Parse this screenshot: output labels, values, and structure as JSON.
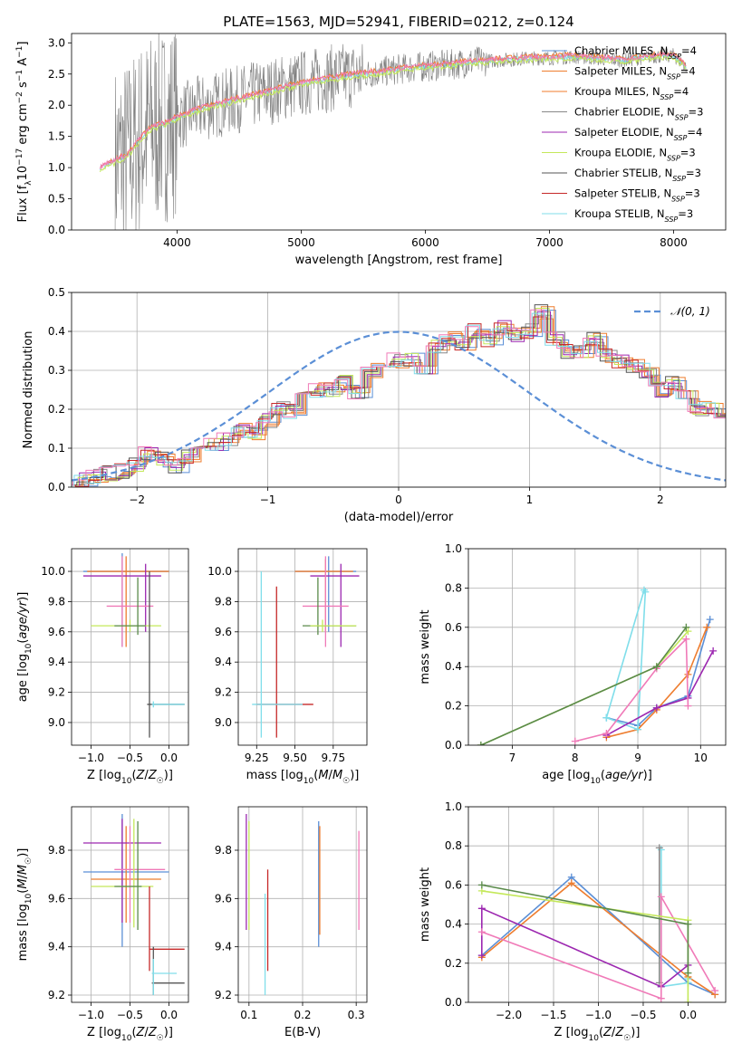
{
  "title": "PLATE=1563, MJD=52941, FIBERID=0212, z=0.124",
  "colors": {
    "chabrier_miles": "#5b8fd6",
    "salpeter_miles": "#ee7d2f",
    "kroupa_miles": "#f07c2e",
    "chabrier_elodie": "#888888",
    "salpeter_elodie": "#9c27b0",
    "kroupa_elodie": "#c4e85a",
    "chabrier_stelib": "#555555",
    "salpeter_stelib": "#c62828",
    "kroupa_stelib": "#80deea",
    "pink": "#f07ab8",
    "green": "#5a8a4a",
    "normal_curve": "#5b8fd6"
  },
  "chart_data": [
    {
      "id": "spectrum",
      "type": "line",
      "xlabel": "wavelength [Angstrom, rest frame]",
      "ylabel": "Flux [f_λ 10^-17 erg cm^-2 s^-1 A^-1]",
      "xlim": [
        3150,
        8420
      ],
      "ylim": [
        0,
        3.15
      ],
      "xticks": [
        "4000",
        "5000",
        "6000",
        "7000",
        "8000"
      ],
      "yticks": [
        "0.0",
        "0.5",
        "1.0",
        "1.5",
        "2.0",
        "2.5",
        "3.0"
      ],
      "legend": {
        "position": "top-right",
        "entries": [
          "Chabrier MILES, N_SSP=4",
          "Salpeter MILES, N_SSP=4",
          "Kroupa MILES, N_SSP=4",
          "Chabrier ELODIE, N_SSP=3",
          "Salpeter ELODIE, N_SSP=4",
          "Kroupa ELODIE, N_SSP=3",
          "Chabrier STELIB, N_SSP=3",
          "Salpeter STELIB, N_SSP=3",
          "Kroupa STELIB, N_SSP=3"
        ]
      },
      "continuum": {
        "x": [
          3380,
          3500,
          3600,
          3700,
          3800,
          3900,
          4000,
          4200,
          4400,
          4600,
          4800,
          5000,
          5200,
          5400,
          5600,
          5800,
          6000,
          6200,
          6400,
          6600,
          6800,
          7000,
          7200,
          7400,
          7600,
          7800,
          8000,
          8100
        ],
        "y": [
          1.0,
          1.1,
          1.2,
          1.45,
          1.65,
          1.7,
          1.8,
          1.95,
          2.05,
          2.15,
          2.25,
          2.35,
          2.42,
          2.48,
          2.52,
          2.58,
          2.62,
          2.65,
          2.7,
          2.72,
          2.75,
          2.76,
          2.78,
          2.75,
          2.72,
          2.78,
          2.8,
          2.62
        ]
      }
    },
    {
      "id": "residuals",
      "type": "bar",
      "xlabel": "(data-model)/error",
      "ylabel": "Normed distribution",
      "xlim": [
        -2.5,
        2.5
      ],
      "ylim": [
        0,
        0.5
      ],
      "xticks": [
        "−2",
        "−1",
        "0",
        "1",
        "2"
      ],
      "yticks": [
        "0.0",
        "0.1",
        "0.2",
        "0.3",
        "0.4",
        "0.5"
      ],
      "legend": {
        "position": "top-right",
        "entries": [
          "𝒩(0, 1)"
        ]
      },
      "bin_width": 0.1,
      "bin_start": -2.5,
      "hist_base": [
        0.025,
        0.02,
        0.03,
        0.035,
        0.04,
        0.06,
        0.085,
        0.07,
        0.055,
        0.08,
        0.09,
        0.11,
        0.12,
        0.145,
        0.14,
        0.17,
        0.2,
        0.195,
        0.23,
        0.25,
        0.25,
        0.27,
        0.24,
        0.3,
        0.32,
        0.325,
        0.33,
        0.3,
        0.36,
        0.38,
        0.37,
        0.4,
        0.38,
        0.41,
        0.39,
        0.4,
        0.45,
        0.38,
        0.35,
        0.35,
        0.38,
        0.34,
        0.32,
        0.31,
        0.3,
        0.25,
        0.27,
        0.23,
        0.2,
        0.2,
        0.18,
        0.15,
        0.16,
        0.12,
        0.13,
        0.11,
        0.11,
        0.1,
        0.09,
        0.08,
        0.07,
        0.06,
        0.06,
        0.05,
        0.04,
        0.035,
        0.03,
        0.025,
        0.03
      ]
    },
    {
      "id": "age_vs_Z",
      "type": "scatter",
      "xlabel": "Z [log10(Z/Z☉)]",
      "ylabel": "age  [log10(age/yr)]",
      "xlim": [
        -1.25,
        0.25
      ],
      "ylim": [
        8.85,
        10.15
      ],
      "xticks": [
        "−1.0",
        "−0.5",
        "0.0"
      ],
      "yticks": [
        "9.0",
        "9.2",
        "9.4",
        "9.6",
        "9.8",
        "10.0"
      ],
      "points": [
        {
          "x": -0.6,
          "y": 10.0,
          "xe": [
            -1.1,
            0.0
          ],
          "ye": [
            9.5,
            10.12
          ],
          "c": "chabrier_miles"
        },
        {
          "x": -0.55,
          "y": 10.0,
          "xe": [
            -1.05,
            0.0
          ],
          "ye": [
            9.5,
            10.1
          ],
          "c": "salpeter_miles"
        },
        {
          "x": -0.3,
          "y": 9.97,
          "xe": [
            -1.1,
            -0.1
          ],
          "ye": [
            9.6,
            10.05
          ],
          "c": "salpeter_elodie"
        },
        {
          "x": -0.6,
          "y": 9.77,
          "xe": [
            -0.8,
            -0.2
          ],
          "ye": [
            9.5,
            10.1
          ],
          "c": "pink"
        },
        {
          "x": -0.5,
          "y": 9.64,
          "xe": [
            -1.0,
            -0.1
          ],
          "ye": [
            9.6,
            9.68
          ],
          "c": "kroupa_elodie"
        },
        {
          "x": -0.4,
          "y": 9.64,
          "xe": [
            -0.7,
            -0.3
          ],
          "ye": [
            9.58,
            9.96
          ],
          "c": "green"
        },
        {
          "x": -0.25,
          "y": 9.12,
          "xe": [
            -0.28,
            0.2
          ],
          "ye": [
            8.9,
            10.0
          ],
          "c": "chabrier_stelib"
        },
        {
          "x": -0.2,
          "y": 9.12,
          "xe": [
            -0.22,
            0.2
          ],
          "ye": [
            9.1,
            9.14
          ],
          "c": "kroupa_stelib"
        }
      ]
    },
    {
      "id": "age_vs_mass",
      "type": "scatter",
      "xlabel": "mass [log10(M/M☉)]",
      "ylabel": "",
      "xlim": [
        9.13,
        9.97
      ],
      "ylim": [
        8.85,
        10.15
      ],
      "xticks": [
        "9.25",
        "9.50",
        "9.75"
      ],
      "yticks": [
        "9.0",
        "9.2",
        "9.4",
        "9.6",
        "9.8",
        "10.0"
      ],
      "points": [
        {
          "x": 9.72,
          "y": 10.0,
          "xe": [
            9.5,
            9.9
          ],
          "ye": [
            9.6,
            10.1
          ],
          "c": "chabrier_miles"
        },
        {
          "x": 9.7,
          "y": 10.0,
          "xe": [
            9.5,
            9.88
          ],
          "ye": [
            9.6,
            10.08
          ],
          "c": "salpeter_miles"
        },
        {
          "x": 9.8,
          "y": 9.97,
          "xe": [
            9.6,
            9.92
          ],
          "ye": [
            9.5,
            10.05
          ],
          "c": "salpeter_elodie"
        },
        {
          "x": 9.7,
          "y": 9.77,
          "xe": [
            9.55,
            9.85
          ],
          "ye": [
            9.5,
            10.1
          ],
          "c": "pink"
        },
        {
          "x": 9.65,
          "y": 9.64,
          "xe": [
            9.55,
            9.9
          ],
          "ye": [
            9.58,
            9.96
          ],
          "c": "green"
        },
        {
          "x": 9.68,
          "y": 9.64,
          "xe": [
            9.6,
            9.9
          ],
          "ye": [
            9.6,
            9.68
          ],
          "c": "kroupa_elodie"
        },
        {
          "x": 9.38,
          "y": 9.12,
          "xe": [
            9.25,
            9.62
          ],
          "ye": [
            8.9,
            9.9
          ],
          "c": "salpeter_stelib"
        },
        {
          "x": 9.28,
          "y": 9.12,
          "xe": [
            9.22,
            9.55
          ],
          "ye": [
            8.9,
            10.0
          ],
          "c": "kroupa_stelib"
        }
      ]
    },
    {
      "id": "mass_weight_vs_age",
      "type": "line",
      "xlabel": "age  [log10(age/yr)]",
      "ylabel": "mass weight",
      "xlim": [
        6.3,
        10.4
      ],
      "ylim": [
        0,
        1.0
      ],
      "xticks": [
        "7",
        "8",
        "9",
        "10"
      ],
      "yticks": [
        "0.0",
        "0.2",
        "0.4",
        "0.6",
        "0.8",
        "1.0"
      ],
      "series": [
        {
          "c": "chabrier_miles",
          "x": [
            8.5,
            9.0,
            9.3,
            9.8,
            10.15
          ],
          "y": [
            0.14,
            0.1,
            0.19,
            0.25,
            0.64
          ]
        },
        {
          "c": "salpeter_miles",
          "x": [
            8.5,
            9.0,
            9.3,
            9.8,
            10.1
          ],
          "y": [
            0.04,
            0.08,
            0.18,
            0.36,
            0.6
          ]
        },
        {
          "c": "kroupa_stelib",
          "x": [
            8.5,
            9.0,
            9.12,
            9.1,
            8.5
          ],
          "y": [
            0.14,
            0.08,
            0.78,
            0.79,
            0.14
          ]
        },
        {
          "c": "salpeter_elodie",
          "x": [
            8.5,
            9.3,
            9.8,
            10.2
          ],
          "y": [
            0.05,
            0.19,
            0.24,
            0.48
          ]
        },
        {
          "c": "pink",
          "x": [
            8.0,
            8.5,
            9.3,
            9.77,
            9.8
          ],
          "y": [
            0.02,
            0.06,
            0.39,
            0.54,
            0.2
          ]
        },
        {
          "c": "kroupa_elodie",
          "x": [
            6.5,
            9.3,
            9.8
          ],
          "y": [
            0.0,
            0.4,
            0.58
          ]
        },
        {
          "c": "green",
          "x": [
            6.5,
            9.3,
            9.77
          ],
          "y": [
            0.0,
            0.4,
            0.6
          ]
        }
      ]
    },
    {
      "id": "mass_vs_Z",
      "type": "scatter",
      "xlabel": "Z [log10(Z/Z☉)]",
      "ylabel": "mass [log10(M/M☉)]",
      "xlim": [
        -1.25,
        0.25
      ],
      "ylim": [
        9.17,
        9.98
      ],
      "xticks": [
        "−1.0",
        "−0.5",
        "0.0"
      ],
      "yticks": [
        "9.2",
        "9.4",
        "9.6",
        "9.8"
      ],
      "points": [
        {
          "x": -0.6,
          "y": 9.71,
          "xe": [
            -1.1,
            0.0
          ],
          "ye": [
            9.4,
            9.95
          ],
          "c": "chabrier_miles"
        },
        {
          "x": -0.55,
          "y": 9.68,
          "xe": [
            -1.0,
            -0.1
          ],
          "ye": [
            9.5,
            9.9
          ],
          "c": "salpeter_miles"
        },
        {
          "x": -0.6,
          "y": 9.83,
          "xe": [
            -1.1,
            -0.1
          ],
          "ye": [
            9.5,
            9.93
          ],
          "c": "salpeter_elodie"
        },
        {
          "x": -0.5,
          "y": 9.72,
          "xe": [
            -0.7,
            -0.05
          ],
          "ye": [
            9.5,
            9.9
          ],
          "c": "pink"
        },
        {
          "x": -0.45,
          "y": 9.65,
          "xe": [
            -1.0,
            -0.2
          ],
          "ye": [
            9.48,
            9.93
          ],
          "c": "kroupa_elodie"
        },
        {
          "x": -0.4,
          "y": 9.65,
          "xe": [
            -0.7,
            -0.35
          ],
          "ye": [
            9.47,
            9.92
          ],
          "c": "green"
        },
        {
          "x": -0.25,
          "y": 9.39,
          "xe": [
            -0.25,
            0.2
          ],
          "ye": [
            9.3,
            9.65
          ],
          "c": "salpeter_stelib"
        },
        {
          "x": -0.2,
          "y": 9.25,
          "xe": [
            -0.22,
            0.2
          ],
          "ye": [
            9.2,
            9.4
          ],
          "c": "chabrier_stelib"
        },
        {
          "x": -0.2,
          "y": 9.29,
          "xe": [
            -0.22,
            0.1
          ],
          "ye": [
            9.2,
            9.35
          ],
          "c": "kroupa_stelib"
        }
      ]
    },
    {
      "id": "mass_vs_ebv",
      "type": "scatter",
      "xlabel": "E(B-V)",
      "ylabel": "",
      "xlim": [
        0.08,
        0.32
      ],
      "ylim": [
        9.17,
        9.98
      ],
      "xticks": [
        "0.1",
        "0.2",
        "0.3"
      ],
      "yticks": [
        "9.2",
        "9.4",
        "9.6",
        "9.8"
      ],
      "points": [
        {
          "x": 0.095,
          "y": 9.6,
          "ye": [
            9.47,
            9.95
          ],
          "c": "salpeter_elodie"
        },
        {
          "x": 0.1,
          "y": 9.6,
          "ye": [
            9.47,
            9.92
          ],
          "c": "kroupa_elodie"
        },
        {
          "x": 0.13,
          "y": 9.4,
          "ye": [
            9.2,
            9.62
          ],
          "c": "kroupa_stelib"
        },
        {
          "x": 0.135,
          "y": 9.5,
          "ye": [
            9.3,
            9.72
          ],
          "c": "salpeter_stelib"
        },
        {
          "x": 0.23,
          "y": 9.7,
          "ye": [
            9.4,
            9.92
          ],
          "c": "chabrier_miles"
        },
        {
          "x": 0.232,
          "y": 9.7,
          "ye": [
            9.45,
            9.9
          ],
          "c": "salpeter_miles"
        },
        {
          "x": 0.305,
          "y": 9.65,
          "ye": [
            9.47,
            9.88
          ],
          "c": "pink"
        }
      ]
    },
    {
      "id": "mass_weight_vs_Z",
      "type": "line",
      "xlabel": "Z [log10(Z/Z☉)]",
      "ylabel": "mass weight",
      "xlim": [
        -2.45,
        0.42
      ],
      "ylim": [
        0,
        1.0
      ],
      "xticks": [
        "−2.0",
        "−1.5",
        "−1.0",
        "−0.5",
        "0.0"
      ],
      "yticks": [
        "0.0",
        "0.2",
        "0.4",
        "0.6",
        "0.8",
        "1.0"
      ],
      "series": [
        {
          "c": "chabrier_miles",
          "x": [
            -2.3,
            -1.3,
            0.0,
            0.3
          ],
          "y": [
            0.24,
            0.64,
            0.1,
            0.04
          ]
        },
        {
          "c": "salpeter_miles",
          "x": [
            -2.3,
            -1.3,
            0.0,
            0.3
          ],
          "y": [
            0.23,
            0.61,
            0.13,
            0.04
          ]
        },
        {
          "c": "kroupa_stelib",
          "x": [
            -0.3,
            -0.3,
            0.0,
            0.0
          ],
          "y": [
            0.78,
            0.08,
            0.1,
            0.12
          ]
        },
        {
          "c": "chabrier_elodie",
          "x": [
            -0.32,
            -0.32
          ],
          "y": [
            0.79,
            0.1
          ]
        },
        {
          "c": "salpeter_elodie",
          "x": [
            -2.3,
            -2.3,
            -0.3,
            0.0
          ],
          "y": [
            0.24,
            0.48,
            0.08,
            0.19
          ]
        },
        {
          "c": "pink",
          "x": [
            -2.3,
            -0.3,
            -0.3,
            0.3
          ],
          "y": [
            0.36,
            0.02,
            0.54,
            0.06
          ]
        },
        {
          "c": "kroupa_elodie",
          "x": [
            -2.3,
            0.0,
            0.0
          ],
          "y": [
            0.57,
            0.42,
            0.0
          ]
        },
        {
          "c": "green",
          "x": [
            -2.3,
            0.0,
            0.0
          ],
          "y": [
            0.6,
            0.4,
            0.15
          ]
        }
      ]
    }
  ]
}
